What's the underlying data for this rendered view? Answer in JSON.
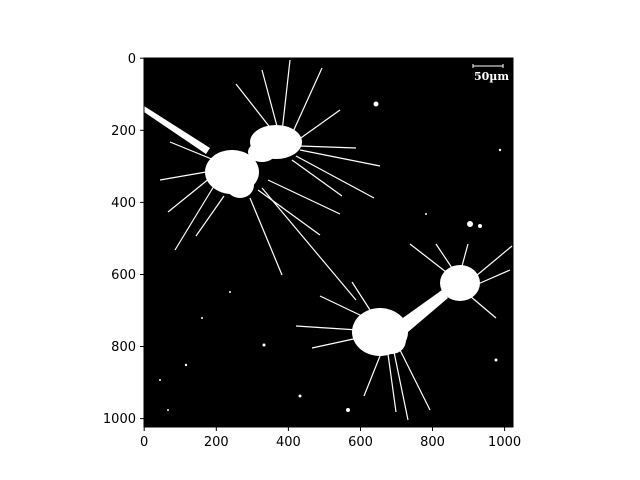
{
  "image": {
    "description_free": true,
    "background_color": "#000000",
    "foreground_color": "#ffffff",
    "scale_bar": {
      "label": "50µm"
    }
  },
  "axes": {
    "x": {
      "ticks": [
        "0",
        "200",
        "400",
        "600",
        "800",
        "1000"
      ],
      "range": [
        0,
        1024
      ]
    },
    "y": {
      "ticks": [
        "0",
        "200",
        "400",
        "600",
        "800",
        "1000"
      ],
      "range": [
        0,
        1024
      ]
    }
  }
}
